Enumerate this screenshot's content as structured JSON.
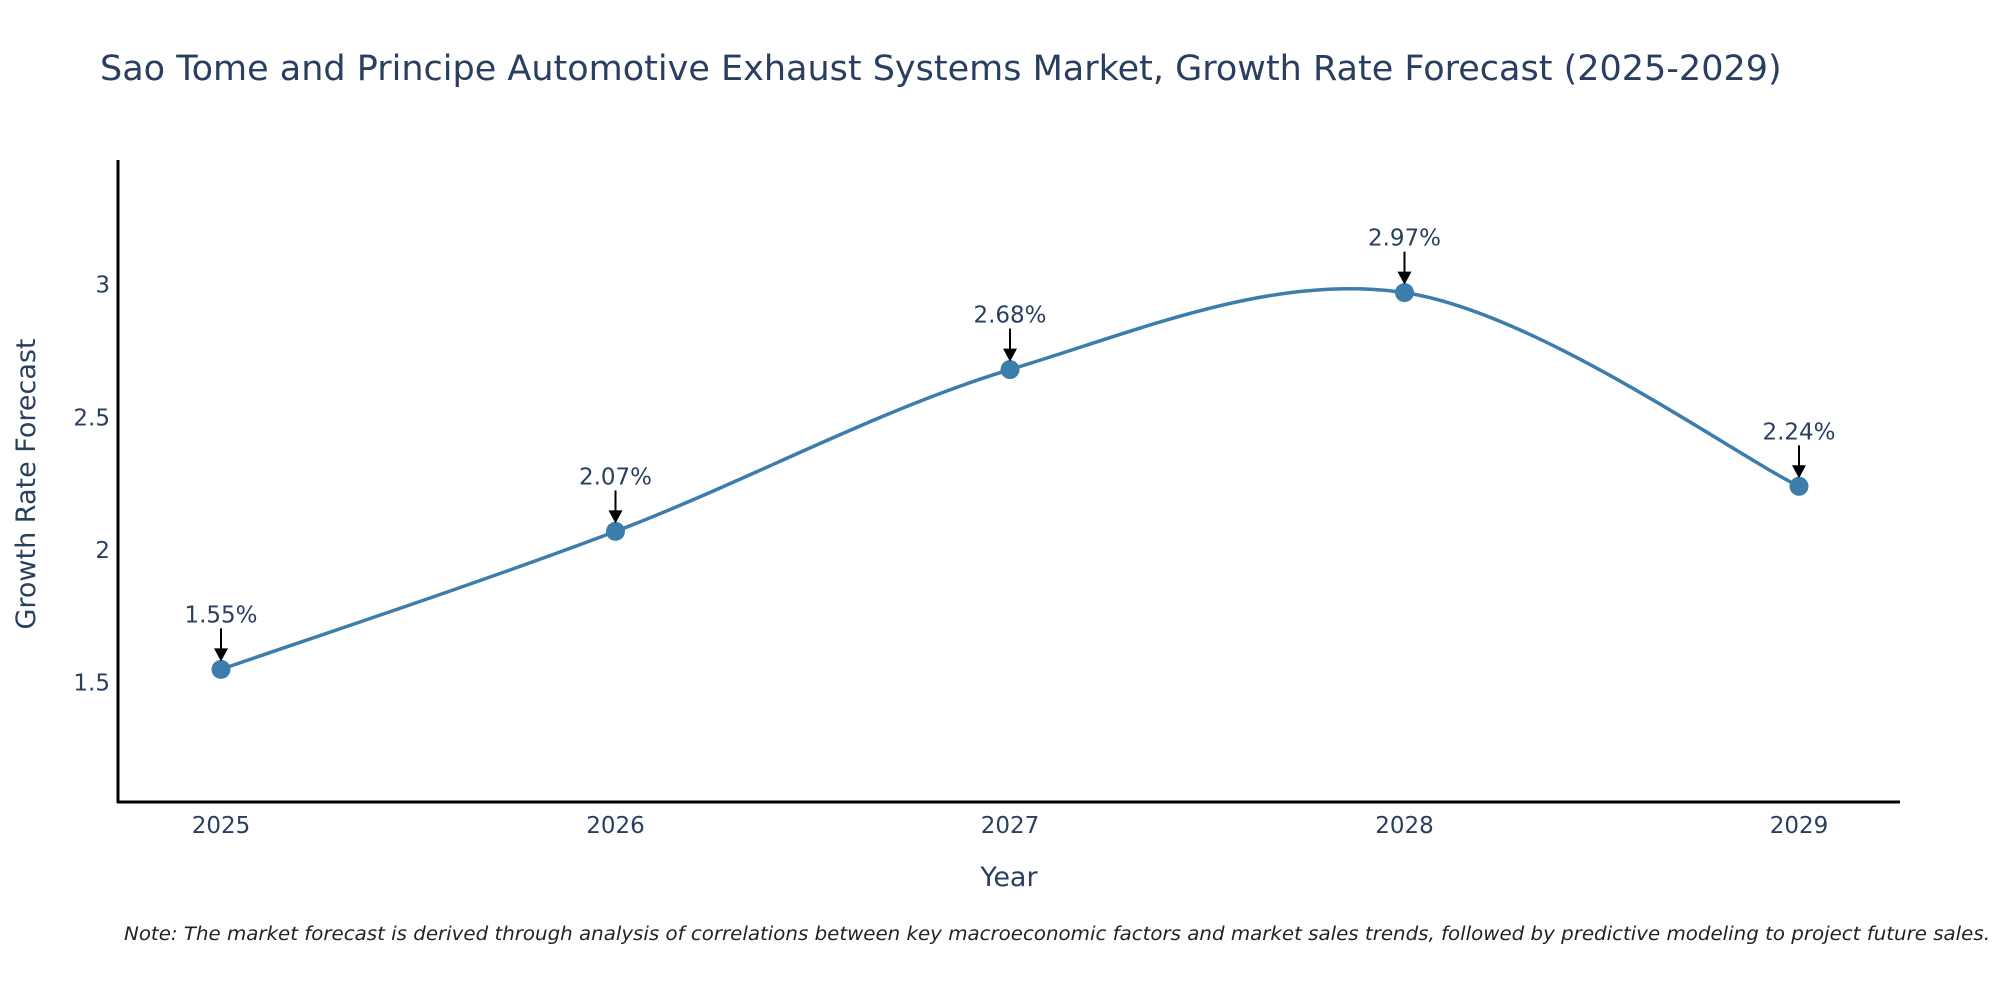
{
  "chart_data": {
    "type": "line",
    "title": "Sao Tome and Principe Automotive Exhaust Systems Market, Growth Rate Forecast (2025-2029)",
    "xlabel": "Year",
    "ylabel": "Growth Rate Forecast",
    "categories": [
      "2025",
      "2026",
      "2027",
      "2028",
      "2029"
    ],
    "values": [
      1.55,
      2.07,
      2.68,
      2.97,
      2.24
    ],
    "data_labels": [
      "1.55%",
      "2.07%",
      "2.68%",
      "2.97%",
      "2.24%"
    ],
    "ylim": [
      1.05,
      3.47
    ],
    "yticks": [
      1.5,
      2,
      2.5,
      3
    ],
    "ytick_labels": [
      "1.5",
      "2",
      "2.5",
      "3"
    ],
    "grid": false,
    "line_shape": "spline",
    "series_color": "#3d7dab",
    "note": "Note: The market forecast is derived through analysis of correlations between key macroeconomic factors and market sales trends, followed by predictive modeling to project future sales."
  }
}
